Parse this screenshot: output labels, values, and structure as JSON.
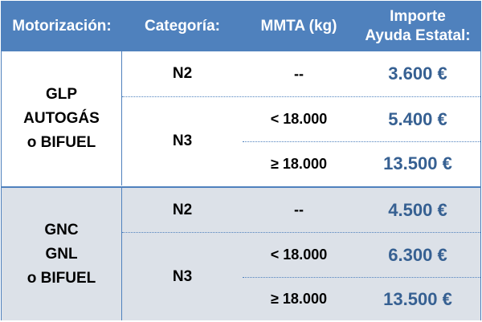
{
  "header": {
    "motorizacion": "Motorización:",
    "categoria": "Categoría:",
    "mmta": "MMTA (kg)",
    "importe_line1": "Importe",
    "importe_line2": "Ayuda Estatal:"
  },
  "groups": [
    {
      "motor_lines": [
        "GLP",
        "AUTOGÁS",
        "o BIFUEL"
      ],
      "rows": [
        {
          "categoria": "N2",
          "mmta": "--",
          "importe": "3.600 €"
        },
        {
          "categoria": "N3",
          "mmta": "< 18.000",
          "importe": "5.400 €"
        },
        {
          "mmta": "≥ 18.000",
          "importe": "13.500 €"
        }
      ]
    },
    {
      "motor_lines": [
        "GNC",
        "GNL",
        "o BIFUEL"
      ],
      "rows": [
        {
          "categoria": "N2",
          "mmta": "--",
          "importe": "4.500 €"
        },
        {
          "categoria": "N3",
          "mmta": "< 18.000",
          "importe": "6.300 €"
        },
        {
          "mmta": "≥ 18.000",
          "importe": "13.500 €"
        }
      ]
    }
  ],
  "colors": {
    "header_bg": "#4f81bd",
    "amount_text": "#366092",
    "group2_bg": "#dce1e8"
  }
}
